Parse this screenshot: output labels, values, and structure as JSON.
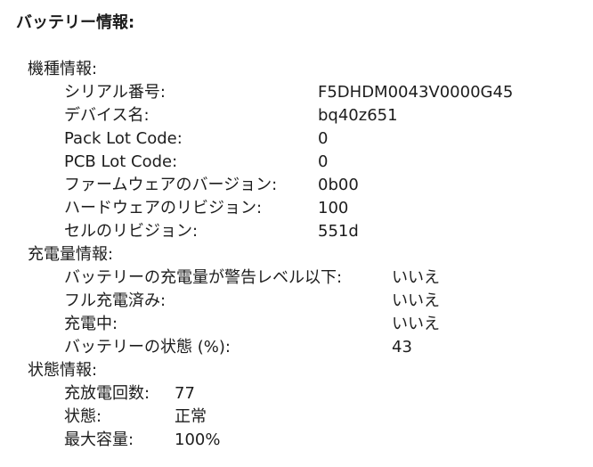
{
  "title": "バッテリー情報:",
  "sections": [
    {
      "label": "機種情報:",
      "rows": [
        {
          "label": "シリアル番号:",
          "value": "F5DHDM0043V0000G45"
        },
        {
          "label": "デバイス名:",
          "value": "bq40z651"
        },
        {
          "label": "Pack Lot Code:",
          "value": "0"
        },
        {
          "label": "PCB Lot Code:",
          "value": "0"
        },
        {
          "label": "ファームウェアのバージョン:",
          "value": "0b00"
        },
        {
          "label": "ハードウェアのリビジョン:",
          "value": "100"
        },
        {
          "label": "セルのリビジョン:",
          "value": "551d"
        }
      ]
    },
    {
      "label": "充電量情報:",
      "rows": [
        {
          "label": "バッテリーの充電量が警告レベル以下:",
          "value": "いいえ"
        },
        {
          "label": "フル充電済み:",
          "value": "いいえ"
        },
        {
          "label": "充電中:",
          "value": "いいえ"
        },
        {
          "label": "バッテリーの状態 (%):",
          "value": "43"
        }
      ]
    },
    {
      "label": "状態情報:",
      "rows": [
        {
          "label": "充放電回数:",
          "value": "77"
        },
        {
          "label": "状態:",
          "value": "正常"
        },
        {
          "label": "最大容量:",
          "value": "100%"
        }
      ]
    }
  ]
}
